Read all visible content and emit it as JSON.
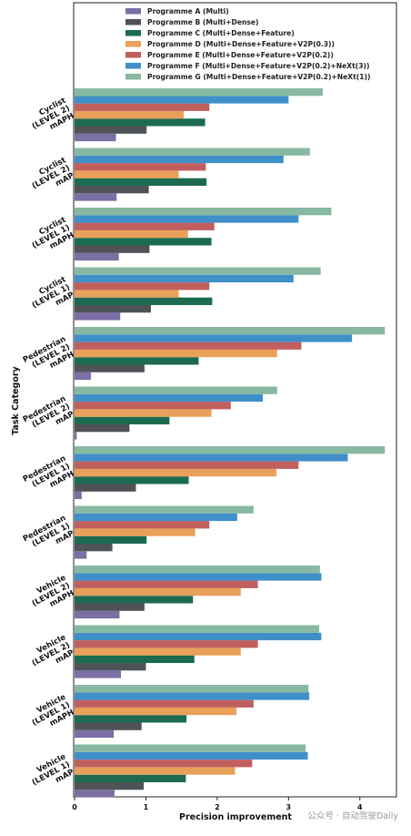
{
  "chart_data": {
    "type": "bar",
    "orientation": "horizontal",
    "xlabel": "Precision improvement",
    "ylabel": "Task Category",
    "xlim": [
      0,
      4.5
    ],
    "xticks": [
      0,
      1,
      2,
      3,
      4
    ],
    "legend_position": "top",
    "grid": false,
    "categories": [
      "Cyclist (LEVEL 2) mAPH",
      "Cyclist (LEVEL 2) mAP",
      "Cyclist (LEVEL 1) mAPH",
      "Cyclist (LEVEL 1) mAP",
      "Pedestrian (LEVEL 2) mAPH",
      "Pedestrian (LEVEL 2) mAP",
      "Pedestrian (LEVEL 1) mAPH",
      "Pedestrian (LEVEL 1) mAP",
      "Vehicle (LEVEL 2) mAPH",
      "Vehicle (LEVEL 2) mAP",
      "Vehicle (LEVEL 1) mAPH",
      "Vehicle (LEVEL 1) mAP"
    ],
    "category_lines": [
      [
        "Cyclist",
        "(LEVEL 2)",
        "mAPH"
      ],
      [
        "Cyclist",
        "(LEVEL 2)",
        "mAP"
      ],
      [
        "Cyclist",
        "(LEVEL 1)",
        "mAPH"
      ],
      [
        "Cyclist",
        "(LEVEL 1)",
        "mAP"
      ],
      [
        "Pedestrian",
        "(LEVEL 2)",
        "mAPH"
      ],
      [
        "Pedestrian",
        "(LEVEL 2)",
        "mAP"
      ],
      [
        "Pedestrian",
        "(LEVEL 1)",
        "mAPH"
      ],
      [
        "Pedestrian",
        "(LEVEL 1)",
        "mAP"
      ],
      [
        "Vehicle",
        "(LEVEL 2)",
        "mAPH"
      ],
      [
        "Vehicle",
        "(LEVEL 2)",
        "mAP"
      ],
      [
        "Vehicle",
        "(LEVEL 1)",
        "mAPH"
      ],
      [
        "Vehicle",
        "(LEVEL 1)",
        "mAP"
      ]
    ],
    "series": [
      {
        "name": "Programme A (Multi)",
        "color": "#7b6fa6",
        "values": [
          0.58,
          0.59,
          0.62,
          0.64,
          0.23,
          0.03,
          0.1,
          0.17,
          0.63,
          0.65,
          0.55,
          0.56
        ]
      },
      {
        "name": "Programme B (Multi+Dense)",
        "color": "#4f5358",
        "values": [
          1.01,
          1.04,
          1.05,
          1.07,
          0.98,
          0.77,
          0.86,
          0.53,
          0.98,
          1.0,
          0.94,
          0.97
        ]
      },
      {
        "name": "Programme C (Multi+Dense+Feature)",
        "color": "#1c6b50",
        "values": [
          1.83,
          1.85,
          1.92,
          1.93,
          1.74,
          1.33,
          1.6,
          1.01,
          1.66,
          1.68,
          1.57,
          1.56
        ]
      },
      {
        "name": "Programme D (Multi+Dense+Feature+V2P(0.3))",
        "color": "#e8a05a",
        "values": [
          1.53,
          1.46,
          1.59,
          1.46,
          2.84,
          1.92,
          2.83,
          1.69,
          2.33,
          2.33,
          2.27,
          2.25
        ]
      },
      {
        "name": "Programme E (Multi+Dense+Feature+V2P(0.2))",
        "color": "#c05f5e",
        "values": [
          1.89,
          1.84,
          1.96,
          1.89,
          3.18,
          2.19,
          3.14,
          1.89,
          2.57,
          2.57,
          2.51,
          2.49
        ]
      },
      {
        "name": "Programme F (Multi+Dense+Feature+V2P(0.2)+NeXt(3))",
        "color": "#3f8fc9",
        "values": [
          3.0,
          2.93,
          3.14,
          3.07,
          3.89,
          2.64,
          3.83,
          2.28,
          3.46,
          3.46,
          3.29,
          3.27
        ]
      },
      {
        "name": "Programme G (Multi+Dense+Feature+V2P(0.2)+NeXt(1))",
        "color": "#86b8a2",
        "values": [
          3.48,
          3.3,
          3.6,
          3.45,
          4.35,
          2.84,
          4.35,
          2.51,
          3.44,
          3.43,
          3.28,
          3.24
        ]
      }
    ]
  },
  "watermark": "公众号 · 自动驾驶Daily"
}
